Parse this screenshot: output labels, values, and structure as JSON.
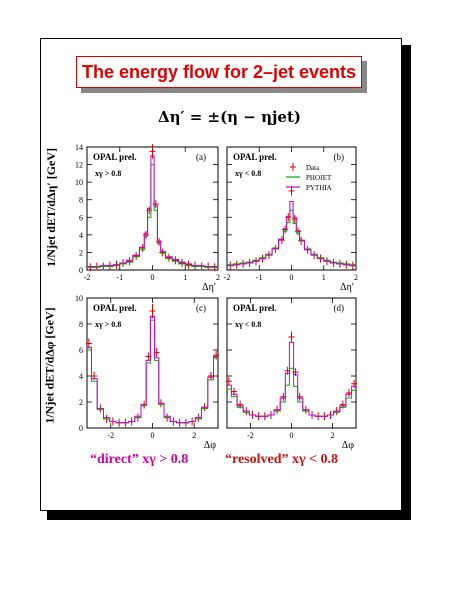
{
  "slide": {
    "title": "The energy flow for 2–jet events",
    "formula": "Δη′ = ±(η − ηjet)",
    "bottom_left": "“direct” xγ > 0.8",
    "bottom_right": "“resolved” xγ < 0.8"
  },
  "legend": [
    {
      "label": "Data",
      "color": "#dd0000"
    },
    {
      "label": "PHOJET",
      "color": "#00aa00"
    },
    {
      "label": "PYTHIA",
      "color": "#cc00cc"
    }
  ],
  "y_labels": {
    "top": "1/Njet dET/dΔη′ [GeV]",
    "bottom": "1/Njet dET/dΔφ [GeV]"
  },
  "chart_data": [
    {
      "type": "line",
      "panel": "(a)",
      "experiment": "OPAL prel.",
      "cut": "xγ > 0.8",
      "xlabel": "Δη′",
      "xlim": [
        -2,
        2
      ],
      "ylim": [
        0,
        14
      ],
      "xticks": [
        -2,
        -1,
        0,
        1,
        2
      ],
      "xtick_labels": [
        "-2",
        "-1",
        "0",
        "1",
        "2"
      ],
      "yticks": [
        0,
        2,
        4,
        6,
        8,
        10,
        12,
        14
      ],
      "x": [
        -1.9,
        -1.7,
        -1.5,
        -1.3,
        -1.1,
        -0.9,
        -0.7,
        -0.5,
        -0.3,
        -0.2,
        -0.1,
        0.0,
        0.1,
        0.2,
        0.3,
        0.5,
        0.7,
        0.9,
        1.1,
        1.3,
        1.5,
        1.7,
        1.9
      ],
      "series": [
        {
          "name": "Data",
          "values": [
            0.3,
            0.4,
            0.4,
            0.5,
            0.6,
            0.8,
            1.0,
            1.6,
            2.5,
            4.0,
            6.8,
            13.5,
            7.5,
            3.2,
            2.0,
            1.4,
            1.1,
            0.8,
            0.6,
            0.5,
            0.4,
            0.4,
            0.3
          ]
        },
        {
          "name": "PHOJET",
          "values": [
            0.3,
            0.3,
            0.4,
            0.4,
            0.5,
            0.7,
            0.9,
            1.5,
            2.3,
            3.8,
            6.0,
            12.0,
            6.8,
            3.0,
            1.9,
            1.3,
            1.0,
            0.7,
            0.5,
            0.4,
            0.4,
            0.3,
            0.3
          ]
        },
        {
          "name": "PYTHIA",
          "values": [
            0.4,
            0.4,
            0.5,
            0.5,
            0.6,
            0.8,
            1.1,
            1.7,
            2.6,
            4.2,
            7.0,
            13.0,
            7.3,
            3.3,
            2.1,
            1.5,
            1.2,
            0.9,
            0.7,
            0.5,
            0.5,
            0.4,
            0.4
          ]
        }
      ]
    },
    {
      "type": "line",
      "panel": "(b)",
      "experiment": "OPAL prel.",
      "cut": "xγ < 0.8",
      "xlabel": "Δη′",
      "xlim": [
        -2,
        2
      ],
      "ylim": [
        0,
        14
      ],
      "xticks": [
        -2,
        -1,
        0,
        1,
        2
      ],
      "xtick_labels": [
        "-2",
        "-1",
        "0",
        "1",
        "2"
      ],
      "yticks": [
        0,
        2,
        4,
        6,
        8,
        10,
        12,
        14
      ],
      "x": [
        -1.9,
        -1.7,
        -1.5,
        -1.3,
        -1.1,
        -0.9,
        -0.7,
        -0.5,
        -0.3,
        -0.2,
        -0.1,
        0.0,
        0.1,
        0.2,
        0.3,
        0.5,
        0.7,
        0.9,
        1.1,
        1.3,
        1.5,
        1.7,
        1.9
      ],
      "series": [
        {
          "name": "Data",
          "values": [
            0.5,
            0.6,
            0.7,
            0.8,
            1.0,
            1.3,
            1.7,
            2.4,
            3.4,
            4.6,
            6.0,
            9.0,
            5.8,
            4.4,
            3.3,
            2.3,
            1.7,
            1.3,
            1.0,
            0.8,
            0.7,
            0.6,
            0.5
          ]
        },
        {
          "name": "PHOJET",
          "values": [
            0.6,
            0.7,
            0.8,
            0.9,
            1.1,
            1.4,
            1.8,
            2.5,
            3.5,
            4.4,
            5.4,
            6.8,
            5.3,
            4.2,
            3.3,
            2.4,
            1.8,
            1.4,
            1.1,
            0.9,
            0.8,
            0.7,
            0.6
          ]
        },
        {
          "name": "PYTHIA",
          "values": [
            0.5,
            0.6,
            0.7,
            0.8,
            1.0,
            1.3,
            1.7,
            2.4,
            3.5,
            4.7,
            6.1,
            7.8,
            6.0,
            4.5,
            3.4,
            2.3,
            1.7,
            1.3,
            1.0,
            0.8,
            0.7,
            0.6,
            0.5
          ]
        }
      ]
    },
    {
      "type": "line",
      "panel": "(c)",
      "experiment": "OPAL prel.",
      "cut": "xγ > 0.8",
      "xlabel": "Δφ",
      "xlim": [
        -3.14,
        3.14
      ],
      "ylim": [
        0,
        10
      ],
      "xticks": [
        -2,
        0,
        2
      ],
      "xtick_labels": [
        "-2",
        "0",
        "2"
      ],
      "yticks": [
        0,
        2,
        4,
        6,
        8,
        10
      ],
      "x": [
        -3.05,
        -2.8,
        -2.5,
        -2.2,
        -1.9,
        -1.6,
        -1.3,
        -1.0,
        -0.7,
        -0.4,
        -0.2,
        0.0,
        0.2,
        0.4,
        0.7,
        1.0,
        1.3,
        1.6,
        1.9,
        2.2,
        2.5,
        2.8,
        3.05
      ],
      "series": [
        {
          "name": "Data",
          "values": [
            6.5,
            4.0,
            1.5,
            0.7,
            0.5,
            0.4,
            0.4,
            0.5,
            0.8,
            1.8,
            5.5,
            9.0,
            5.8,
            1.9,
            0.8,
            0.5,
            0.4,
            0.4,
            0.5,
            0.8,
            1.6,
            4.0,
            5.6
          ]
        },
        {
          "name": "PHOJET",
          "values": [
            6.0,
            3.6,
            1.4,
            0.7,
            0.5,
            0.4,
            0.4,
            0.5,
            0.8,
            1.7,
            5.0,
            8.3,
            5.2,
            1.8,
            0.8,
            0.5,
            0.4,
            0.4,
            0.5,
            0.7,
            1.5,
            3.7,
            5.4
          ]
        },
        {
          "name": "PYTHIA",
          "values": [
            6.2,
            3.8,
            1.5,
            0.8,
            0.5,
            0.4,
            0.4,
            0.5,
            0.9,
            1.8,
            5.2,
            8.6,
            5.4,
            1.9,
            0.9,
            0.5,
            0.4,
            0.4,
            0.5,
            0.8,
            1.6,
            3.9,
            5.5
          ]
        }
      ]
    },
    {
      "type": "line",
      "panel": "(d)",
      "experiment": "OPAL prel.",
      "cut": "xγ < 0.8",
      "xlabel": "Δφ",
      "xlim": [
        -3.14,
        3.14
      ],
      "ylim": [
        0,
        10
      ],
      "xticks": [
        -2,
        0,
        2
      ],
      "xtick_labels": [
        "-2",
        "0",
        "2"
      ],
      "yticks": [
        0,
        2,
        4,
        6,
        8,
        10
      ],
      "x": [
        -3.05,
        -2.8,
        -2.5,
        -2.2,
        -1.9,
        -1.6,
        -1.3,
        -1.0,
        -0.7,
        -0.4,
        -0.2,
        0.0,
        0.2,
        0.4,
        0.7,
        1.0,
        1.3,
        1.6,
        1.9,
        2.2,
        2.5,
        2.8,
        3.05
      ],
      "series": [
        {
          "name": "Data",
          "values": [
            3.6,
            2.8,
            1.8,
            1.3,
            1.0,
            0.9,
            0.9,
            1.0,
            1.4,
            2.4,
            4.4,
            7.0,
            4.3,
            2.4,
            1.4,
            1.0,
            0.9,
            0.9,
            1.0,
            1.3,
            1.8,
            2.7,
            3.4
          ]
        },
        {
          "name": "PHOJET",
          "values": [
            3.0,
            2.4,
            1.6,
            1.2,
            1.0,
            0.9,
            0.9,
            1.0,
            1.3,
            2.0,
            3.3,
            4.6,
            3.2,
            2.0,
            1.3,
            1.0,
            0.9,
            0.9,
            1.0,
            1.2,
            1.6,
            2.3,
            2.9
          ]
        },
        {
          "name": "PYTHIA",
          "values": [
            3.3,
            2.6,
            1.7,
            1.3,
            1.0,
            0.9,
            0.9,
            1.0,
            1.4,
            2.3,
            4.2,
            6.6,
            4.1,
            2.3,
            1.4,
            1.0,
            0.9,
            0.9,
            1.0,
            1.3,
            1.7,
            2.6,
            3.2
          ]
        }
      ]
    }
  ]
}
